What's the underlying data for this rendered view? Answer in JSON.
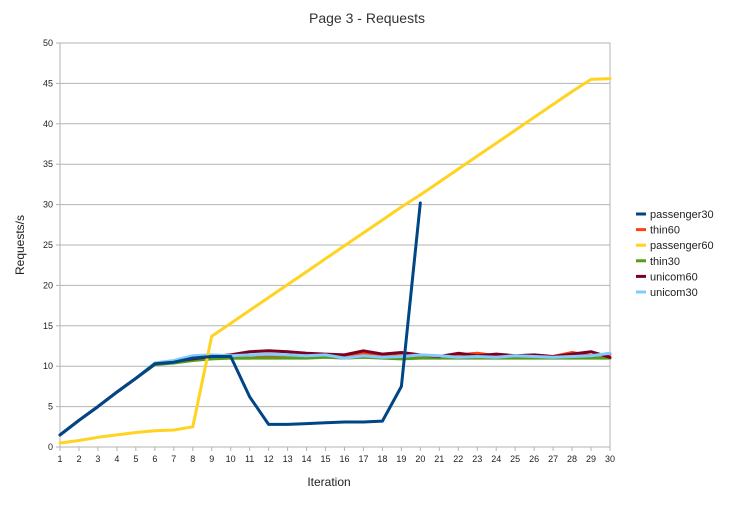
{
  "chart_data": {
    "type": "line",
    "title": "Page 3 - Requests",
    "xlabel": "Iteration",
    "ylabel": "Requests/s",
    "xlim": [
      1,
      30
    ],
    "ylim": [
      0,
      50
    ],
    "x_ticks": [
      1,
      2,
      3,
      4,
      5,
      6,
      7,
      8,
      9,
      10,
      11,
      12,
      13,
      14,
      15,
      16,
      17,
      18,
      19,
      20,
      21,
      22,
      23,
      24,
      25,
      26,
      27,
      28,
      29,
      30
    ],
    "y_ticks": [
      0,
      5,
      10,
      15,
      20,
      25,
      30,
      35,
      40,
      45,
      50
    ],
    "grid": true,
    "legend_position": "right",
    "x": [
      1,
      2,
      3,
      4,
      5,
      6,
      7,
      8,
      9,
      10,
      11,
      12,
      13,
      14,
      15,
      16,
      17,
      18,
      19,
      20,
      21,
      22,
      23,
      24,
      25,
      26,
      27,
      28,
      29,
      30
    ],
    "series": [
      {
        "name": "passenger30",
        "color": "#004586",
        "values": [
          1.5,
          3.3,
          5.0,
          6.8,
          8.5,
          10.3,
          10.5,
          11.0,
          11.2,
          11.2,
          6.2,
          2.8,
          2.8,
          2.9,
          3.0,
          3.1,
          3.1,
          3.2,
          7.5,
          30.2,
          null,
          null,
          null,
          null,
          null,
          null,
          null,
          null,
          null,
          null
        ]
      },
      {
        "name": "thin60",
        "color": "#ff420e",
        "values": [
          1.5,
          3.3,
          5.0,
          6.8,
          8.5,
          10.3,
          10.5,
          11.0,
          11.1,
          11.0,
          11.0,
          11.2,
          11.3,
          11.1,
          11.2,
          11.3,
          11.6,
          11.2,
          11.3,
          11.2,
          11.0,
          11.4,
          11.6,
          11.3,
          11.2,
          11.1,
          11.2,
          11.7,
          11.3,
          11.5
        ]
      },
      {
        "name": "passenger60",
        "color": "#ffd320",
        "values": [
          0.5,
          0.8,
          1.2,
          1.5,
          1.8,
          2.0,
          2.1,
          2.5,
          13.7,
          15.3,
          16.9,
          18.5,
          20.1,
          21.7,
          23.3,
          24.9,
          26.5,
          28.1,
          29.7,
          31.2,
          32.8,
          34.4,
          36.0,
          37.6,
          39.2,
          40.8,
          42.4,
          44.0,
          45.5,
          45.6
        ]
      },
      {
        "name": "thin30",
        "color": "#579d1c",
        "values": [
          1.5,
          3.3,
          5.0,
          6.8,
          8.5,
          10.2,
          10.4,
          10.7,
          10.9,
          11.0,
          11.0,
          11.0,
          11.0,
          11.0,
          11.1,
          11.0,
          11.1,
          11.0,
          10.9,
          11.0,
          11.0,
          11.0,
          11.0,
          11.0,
          11.0,
          11.0,
          11.0,
          11.0,
          11.0,
          11.0
        ]
      },
      {
        "name": "unicom60",
        "color": "#7e0021",
        "values": [
          1.5,
          3.3,
          5.0,
          6.8,
          8.5,
          10.3,
          10.6,
          10.9,
          11.2,
          11.4,
          11.8,
          11.9,
          11.8,
          11.6,
          11.5,
          11.4,
          11.9,
          11.5,
          11.7,
          11.4,
          11.2,
          11.6,
          11.3,
          11.5,
          11.3,
          11.4,
          11.2,
          11.5,
          11.8,
          11.1
        ]
      },
      {
        "name": "unicom30",
        "color": "#83caff",
        "values": [
          1.5,
          3.3,
          5.0,
          6.8,
          8.5,
          10.4,
          10.7,
          11.3,
          11.4,
          11.3,
          11.4,
          11.5,
          11.4,
          11.3,
          11.4,
          11.0,
          11.3,
          11.1,
          11.2,
          11.4,
          11.3,
          11.1,
          11.2,
          11.1,
          11.3,
          11.2,
          11.1,
          11.2,
          11.3,
          11.6
        ]
      }
    ]
  }
}
